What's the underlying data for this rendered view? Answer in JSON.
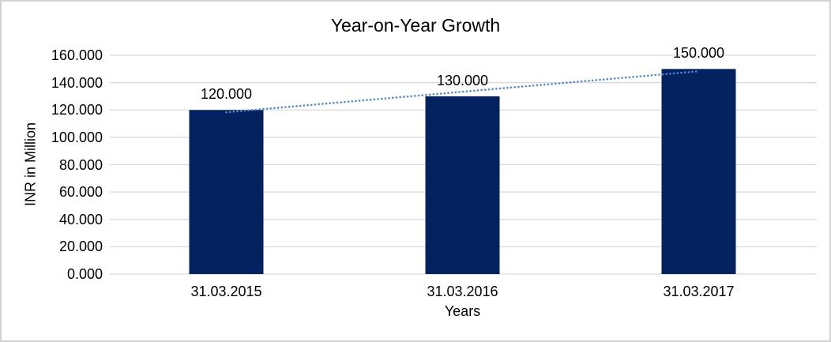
{
  "frame": {
    "background_color": "#ffffff",
    "border_color": "#d2d2d2"
  },
  "chart_data": {
    "type": "bar",
    "title": "Year-on-Year Growth",
    "xlabel": "Years",
    "ylabel": "INR in Million",
    "categories": [
      "31.03.2015",
      "31.03.2016",
      "31.03.2017"
    ],
    "values": [
      120000,
      130000,
      150000
    ],
    "value_labels": [
      "120.000",
      "130.000",
      "150.000"
    ],
    "y_tick_values": [
      0,
      20000,
      40000,
      60000,
      80000,
      100000,
      120000,
      140000,
      160000
    ],
    "y_tick_labels": [
      "0.000",
      "20.000",
      "40.000",
      "60.000",
      "80.000",
      "100.000",
      "120.000",
      "140.000",
      "160.000"
    ],
    "ylim": [
      0,
      160000
    ],
    "grid": true,
    "legend": "none",
    "bar_color": "#052260",
    "gridline_color": "#d9d9d9",
    "text_color": "#000000",
    "trendline": {
      "type": "linear",
      "style": "dotted",
      "color": "#5288cc",
      "fit_values": [
        118333,
        133333,
        148333
      ]
    }
  }
}
